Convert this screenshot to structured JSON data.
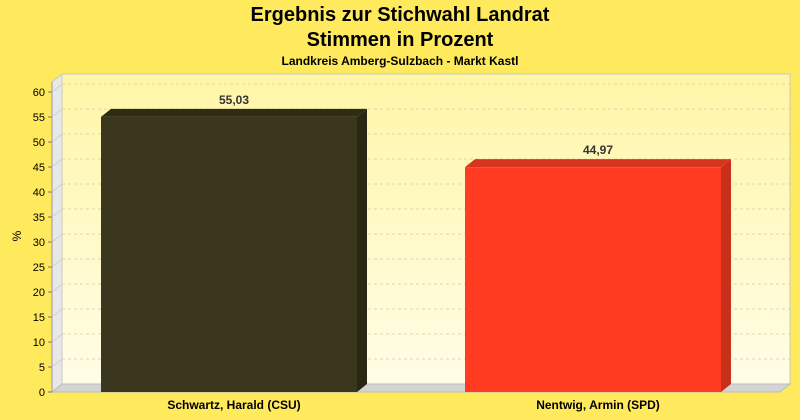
{
  "chart_data": {
    "type": "bar",
    "title": "Ergebnis zur Stichwahl Landrat",
    "title2": "Stimmen in Prozent",
    "subtitle": "Landkreis Amberg-Sulzbach - Markt Kastl",
    "ylabel": "%",
    "ylim": [
      0,
      62
    ],
    "yticks": [
      0,
      5,
      10,
      15,
      20,
      25,
      30,
      35,
      40,
      45,
      50,
      55,
      60
    ],
    "grid": true,
    "categories": [
      "Schwartz, Harald (CSU)",
      "Nentwig, Armin (SPD)"
    ],
    "values": [
      55.03,
      44.97
    ],
    "value_labels": [
      "55,03",
      "44,97"
    ],
    "colors": [
      "#3B371E",
      "#FF3B22"
    ],
    "side_colors": [
      "#2A2812",
      "#C8301A"
    ],
    "top_colors": [
      "#2F2C14",
      "#D83520"
    ]
  }
}
